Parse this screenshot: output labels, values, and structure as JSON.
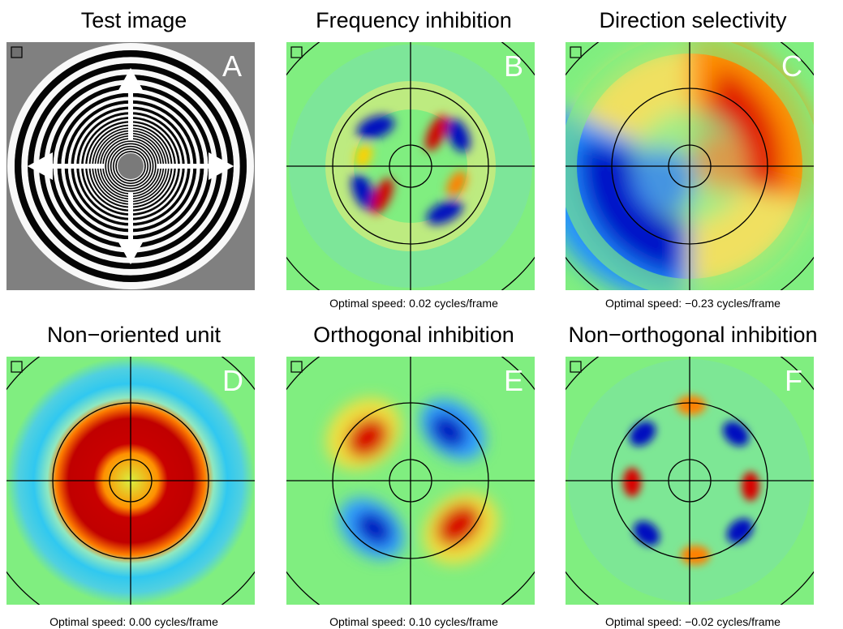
{
  "panels": [
    {
      "id": "A",
      "title": "Test image",
      "letter": "A",
      "caption": ""
    },
    {
      "id": "B",
      "title": "Frequency inhibition",
      "letter": "B",
      "caption": "Optimal speed: 0.02 cycles/frame"
    },
    {
      "id": "C",
      "title": "Direction selectivity",
      "letter": "C",
      "caption": "Optimal speed: −0.23 cycles/frame"
    },
    {
      "id": "D",
      "title": "Non−oriented unit",
      "letter": "D",
      "caption": "Optimal speed: 0.00 cycles/frame"
    },
    {
      "id": "E",
      "title": "Orthogonal inhibition",
      "letter": "E",
      "caption": "Optimal speed: 0.10 cycles/frame"
    },
    {
      "id": "F",
      "title": "Non−orthogonal inhibition",
      "letter": "F",
      "caption": "Optimal speed: −0.02 cycles/frame"
    }
  ],
  "colors": {
    "background": "#80ee80",
    "positive": "#c80000",
    "negative": "#0000b0",
    "test_gray": "#808080"
  }
}
